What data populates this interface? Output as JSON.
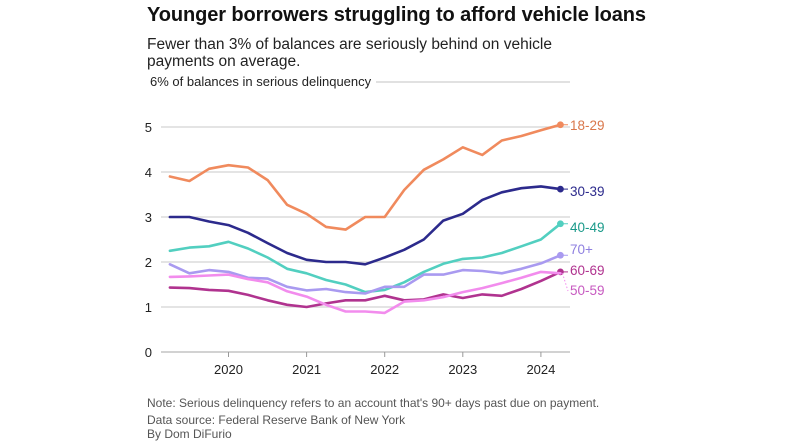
{
  "chart_data": {
    "type": "line",
    "title": "Younger borrowers struggling to afford vehicle loans",
    "subtitle": "Fewer than 3% of balances are seriously behind on vehicle payments on average.",
    "ylabel": "6% of balances in serious delinquency",
    "xlabel": "",
    "ylim": [
      0,
      6
    ],
    "yticks": [
      0,
      1,
      2,
      3,
      4,
      5
    ],
    "xlim": [
      2019.25,
      2024.25
    ],
    "xticks": [
      2020,
      2021,
      2022,
      2023,
      2024
    ],
    "xtick_labels": [
      "2020",
      "2021",
      "2022",
      "2023",
      "2024"
    ],
    "grid": true,
    "legend": "end-of-line labels (right)",
    "x": [
      2019.25,
      2019.5,
      2019.75,
      2020.0,
      2020.25,
      2020.5,
      2020.75,
      2021.0,
      2021.25,
      2021.5,
      2021.75,
      2022.0,
      2022.25,
      2022.5,
      2022.75,
      2023.0,
      2023.25,
      2023.5,
      2023.75,
      2024.0,
      2024.25
    ],
    "series": [
      {
        "name": "18-29",
        "color": "#f08a5d",
        "label_color": "#d9774b",
        "values": [
          3.9,
          3.8,
          4.07,
          4.15,
          4.1,
          3.82,
          3.27,
          3.07,
          2.78,
          2.72,
          3.0,
          3.0,
          3.6,
          4.05,
          4.28,
          4.55,
          4.38,
          4.7,
          4.8,
          4.93,
          5.05
        ]
      },
      {
        "name": "30-39",
        "color": "#2c2a8c",
        "label_color": "#2c2a8c",
        "values": [
          3.0,
          3.0,
          2.9,
          2.82,
          2.65,
          2.42,
          2.2,
          2.05,
          2.0,
          2.0,
          1.95,
          2.1,
          2.27,
          2.5,
          2.92,
          3.07,
          3.38,
          3.55,
          3.64,
          3.68,
          3.62
        ]
      },
      {
        "name": "40-49",
        "color": "#52cfc0",
        "label_color": "#1a9a8a",
        "values": [
          2.25,
          2.32,
          2.35,
          2.45,
          2.3,
          2.1,
          1.85,
          1.75,
          1.6,
          1.5,
          1.33,
          1.38,
          1.55,
          1.78,
          1.96,
          2.07,
          2.1,
          2.2,
          2.35,
          2.5,
          2.85
        ]
      },
      {
        "name": "70+",
        "color": "#a99af0",
        "label_color": "#8f80e0",
        "values": [
          1.95,
          1.75,
          1.82,
          1.78,
          1.65,
          1.63,
          1.45,
          1.37,
          1.4,
          1.33,
          1.3,
          1.45,
          1.45,
          1.72,
          1.72,
          1.82,
          1.8,
          1.75,
          1.85,
          1.97,
          2.15
        ]
      },
      {
        "name": "60-69",
        "color": "#b0338f",
        "label_color": "#b0338f",
        "values": [
          1.43,
          1.42,
          1.38,
          1.36,
          1.27,
          1.15,
          1.05,
          1.0,
          1.08,
          1.15,
          1.15,
          1.25,
          1.15,
          1.17,
          1.28,
          1.2,
          1.28,
          1.25,
          1.4,
          1.58,
          1.78
        ]
      },
      {
        "name": "50-59",
        "color": "#f28ced",
        "label_color": "#c75ac0",
        "values": [
          1.67,
          1.68,
          1.7,
          1.72,
          1.62,
          1.55,
          1.35,
          1.23,
          1.05,
          0.9,
          0.9,
          0.87,
          1.12,
          1.15,
          1.22,
          1.33,
          1.42,
          1.53,
          1.65,
          1.78,
          1.75
        ]
      }
    ]
  },
  "footer": {
    "note": "Note: Serious delinquency refers to an account that's 90+ days past due on payment.",
    "source": "Data source: Federal Reserve Bank of New York",
    "byline": "By Dom DiFurio"
  }
}
